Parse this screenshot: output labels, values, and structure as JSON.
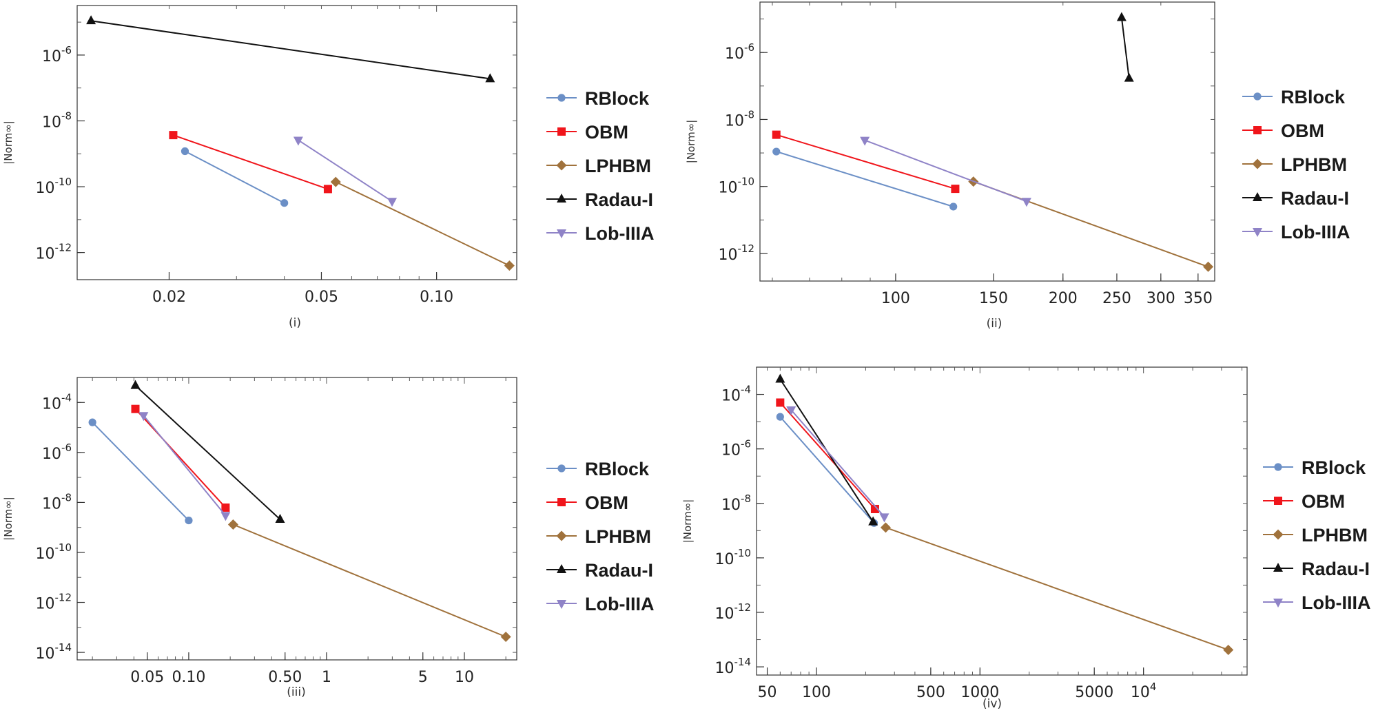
{
  "figure": {
    "series_styles": [
      {
        "name": "RBlock",
        "color": "#6b8fc6",
        "marker": "circle"
      },
      {
        "name": "OBM",
        "color": "#f0151b",
        "marker": "square"
      },
      {
        "name": "LPHBM",
        "color": "#a0723c",
        "marker": "diamond"
      },
      {
        "name": "Radau-I",
        "color": "#111111",
        "marker": "triangle-up"
      },
      {
        "name": "Lob-IIIA",
        "color": "#8f83c7",
        "marker": "triangle-down"
      }
    ]
  },
  "chart_data": [
    {
      "type": "line",
      "caption": "(i)",
      "xscale": "log",
      "yscale": "log",
      "xlabel": "",
      "ylabel": "|Norm∞|",
      "xlim": [
        0.0115,
        0.162
      ],
      "ylim": [
        1.5e-13,
        3.2e-05
      ],
      "xticks": [
        {
          "v": 0.02,
          "label": "0.02"
        },
        {
          "v": 0.05,
          "label": "0.05"
        },
        {
          "v": 0.1,
          "label": "0.10"
        }
      ],
      "yticks": [
        {
          "v": 1e-06,
          "base": "10",
          "exp": "-6"
        },
        {
          "v": 1e-08,
          "base": "10",
          "exp": "-8"
        },
        {
          "v": 1e-10,
          "base": "10",
          "exp": "-10"
        },
        {
          "v": 1e-12,
          "base": "10",
          "exp": "-12"
        }
      ],
      "legend": [
        "RBlock",
        "OBM",
        "LPHBM",
        "Radau-I",
        "Lob-IIIA"
      ],
      "series": [
        {
          "name": "RBlock",
          "x": [
            0.022,
            0.04
          ],
          "y": [
            1.2e-09,
            3.2e-11
          ]
        },
        {
          "name": "OBM",
          "x": [
            0.0205,
            0.052
          ],
          "y": [
            3.7e-09,
            8.5e-11
          ]
        },
        {
          "name": "LPHBM",
          "x": [
            0.0545,
            0.155
          ],
          "y": [
            1.4e-10,
            4e-13
          ]
        },
        {
          "name": "Radau-I",
          "x": [
            0.0125,
            0.138
          ],
          "y": [
            1.1e-05,
            1.9e-07
          ]
        },
        {
          "name": "Lob-IIIA",
          "x": [
            0.0435,
            0.0765
          ],
          "y": [
            2.6e-09,
            3.6e-11
          ]
        }
      ]
    },
    {
      "type": "line",
      "caption": "(ii)",
      "xscale": "log",
      "yscale": "log",
      "xlabel": "",
      "ylabel": "|Norm∞|",
      "xlim": [
        57,
        375
      ],
      "ylim": [
        1.5e-13,
        3.2e-05
      ],
      "xticks": [
        {
          "v": 100,
          "label": "100"
        },
        {
          "v": 150,
          "label": "150"
        },
        {
          "v": 200,
          "label": "200"
        },
        {
          "v": 250,
          "label": "250"
        },
        {
          "v": 300,
          "label": "300"
        },
        {
          "v": 350,
          "label": "350"
        }
      ],
      "yticks": [
        {
          "v": 1e-06,
          "base": "10",
          "exp": "-6"
        },
        {
          "v": 1e-08,
          "base": "10",
          "exp": "-8"
        },
        {
          "v": 1e-10,
          "base": "10",
          "exp": "-10"
        },
        {
          "v": 1e-12,
          "base": "10",
          "exp": "-12"
        }
      ],
      "legend": [
        "RBlock",
        "OBM",
        "LPHBM",
        "Radau-I",
        "Lob-IIIA"
      ],
      "series": [
        {
          "name": "RBlock",
          "x": [
            61,
            127
          ],
          "y": [
            1.1e-09,
            2.5e-11
          ]
        },
        {
          "name": "OBM",
          "x": [
            61,
            128
          ],
          "y": [
            3.5e-09,
            8.5e-11
          ]
        },
        {
          "name": "LPHBM",
          "x": [
            138,
            365
          ],
          "y": [
            1.4e-10,
            4e-13
          ]
        },
        {
          "name": "Radau-I",
          "x": [
            255,
            263
          ],
          "y": [
            1.1e-05,
            1.7e-07
          ]
        },
        {
          "name": "Lob-IIIA",
          "x": [
            88,
            172
          ],
          "y": [
            2.4e-09,
            3.6e-11
          ]
        }
      ]
    },
    {
      "type": "line",
      "caption": "(iii)",
      "xscale": "log",
      "yscale": "log",
      "xlabel": "",
      "ylabel": "|Norm∞|",
      "xlim": [
        0.0155,
        24
      ],
      "ylim": [
        5e-15,
        0.001
      ],
      "xticks": [
        {
          "v": 0.05,
          "label": "0.05"
        },
        {
          "v": 0.1,
          "label": "0.10"
        },
        {
          "v": 0.5,
          "label": "0.50"
        },
        {
          "v": 1,
          "label": "1"
        },
        {
          "v": 5,
          "label": "5"
        },
        {
          "v": 10,
          "label": "10"
        }
      ],
      "yticks": [
        {
          "v": 0.0001,
          "base": "10",
          "exp": "-4"
        },
        {
          "v": 1e-06,
          "base": "10",
          "exp": "-6"
        },
        {
          "v": 1e-08,
          "base": "10",
          "exp": "-8"
        },
        {
          "v": 1e-10,
          "base": "10",
          "exp": "-10"
        },
        {
          "v": 1e-12,
          "base": "10",
          "exp": "-12"
        },
        {
          "v": 1e-14,
          "base": "10",
          "exp": "-14"
        }
      ],
      "legend": [
        "RBlock",
        "OBM",
        "LPHBM",
        "Radau-I",
        "Lob-IIIA"
      ],
      "series": [
        {
          "name": "RBlock",
          "x": [
            0.02,
            0.1
          ],
          "y": [
            1.6e-05,
            1.9e-09
          ]
        },
        {
          "name": "OBM",
          "x": [
            0.041,
            0.185
          ],
          "y": [
            5.5e-05,
            6.2e-09
          ]
        },
        {
          "name": "LPHBM",
          "x": [
            0.21,
            20
          ],
          "y": [
            1.3e-09,
            4.2e-14
          ]
        },
        {
          "name": "Radau-I",
          "x": [
            0.041,
            0.46
          ],
          "y": [
            0.00048,
            2.1e-09
          ]
        },
        {
          "name": "Lob-IIIA",
          "x": [
            0.047,
            0.185
          ],
          "y": [
            3e-05,
            3e-09
          ]
        }
      ]
    },
    {
      "type": "line",
      "caption": "(iv)",
      "xscale": "log",
      "yscale": "log",
      "xlabel": "",
      "ylabel": "|Norm∞|",
      "xlim": [
        43,
        43000
      ],
      "ylim": [
        5e-15,
        0.001
      ],
      "xticks": [
        {
          "v": 50,
          "label": "50"
        },
        {
          "v": 100,
          "label": "100"
        },
        {
          "v": 500,
          "label": "500"
        },
        {
          "v": 1000,
          "label": "1000"
        },
        {
          "v": 5000,
          "label": "5000"
        },
        {
          "v": 10000,
          "label": "10",
          "exp": "4"
        }
      ],
      "yticks": [
        {
          "v": 0.0001,
          "base": "10",
          "exp": "-4"
        },
        {
          "v": 1e-06,
          "base": "10",
          "exp": "-6"
        },
        {
          "v": 1e-08,
          "base": "10",
          "exp": "-8"
        },
        {
          "v": 1e-10,
          "base": "10",
          "exp": "-10"
        },
        {
          "v": 1e-12,
          "base": "10",
          "exp": "-12"
        },
        {
          "v": 1e-14,
          "base": "10",
          "exp": "-14"
        }
      ],
      "legend": [
        "RBlock",
        "OBM",
        "LPHBM",
        "Radau-I",
        "Lob-IIIA"
      ],
      "series": [
        {
          "name": "RBlock",
          "x": [
            60,
            225
          ],
          "y": [
            1.5e-05,
            1.9e-09
          ]
        },
        {
          "name": "OBM",
          "x": [
            60,
            228
          ],
          "y": [
            5e-05,
            6.2e-09
          ]
        },
        {
          "name": "LPHBM",
          "x": [
            265,
            33000
          ],
          "y": [
            1.3e-09,
            4.2e-14
          ]
        },
        {
          "name": "Radau-I",
          "x": [
            60,
            222
          ],
          "y": [
            0.00036,
            2.1e-09
          ]
        },
        {
          "name": "Lob-IIIA",
          "x": [
            70,
            260
          ],
          "y": [
            2.7e-05,
            3.2e-09
          ]
        }
      ]
    }
  ]
}
